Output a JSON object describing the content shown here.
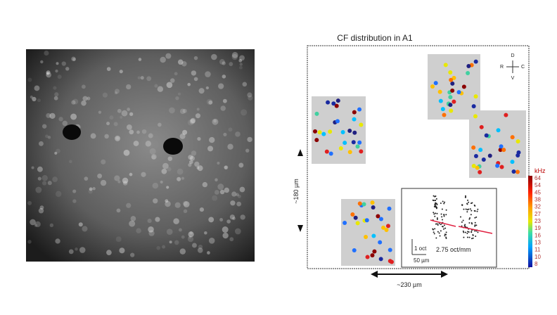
{
  "panel": {
    "title": "CF distribution in A1",
    "compass": {
      "dorsal": "D",
      "rostral": "R",
      "caudal": "C",
      "ventral": "V"
    },
    "scale_vertical": "~180 µm",
    "scale_horizontal": "~230 µm",
    "colorbar": {
      "unit": "kHz",
      "labels": [
        64,
        54,
        45,
        38,
        32,
        27,
        23,
        19,
        16,
        13,
        11,
        10,
        8
      ]
    },
    "inset": {
      "octave_scale": "1 oct",
      "distance_scale": "50 µm",
      "gradient": "2.75 oct/mm"
    }
  }
}
